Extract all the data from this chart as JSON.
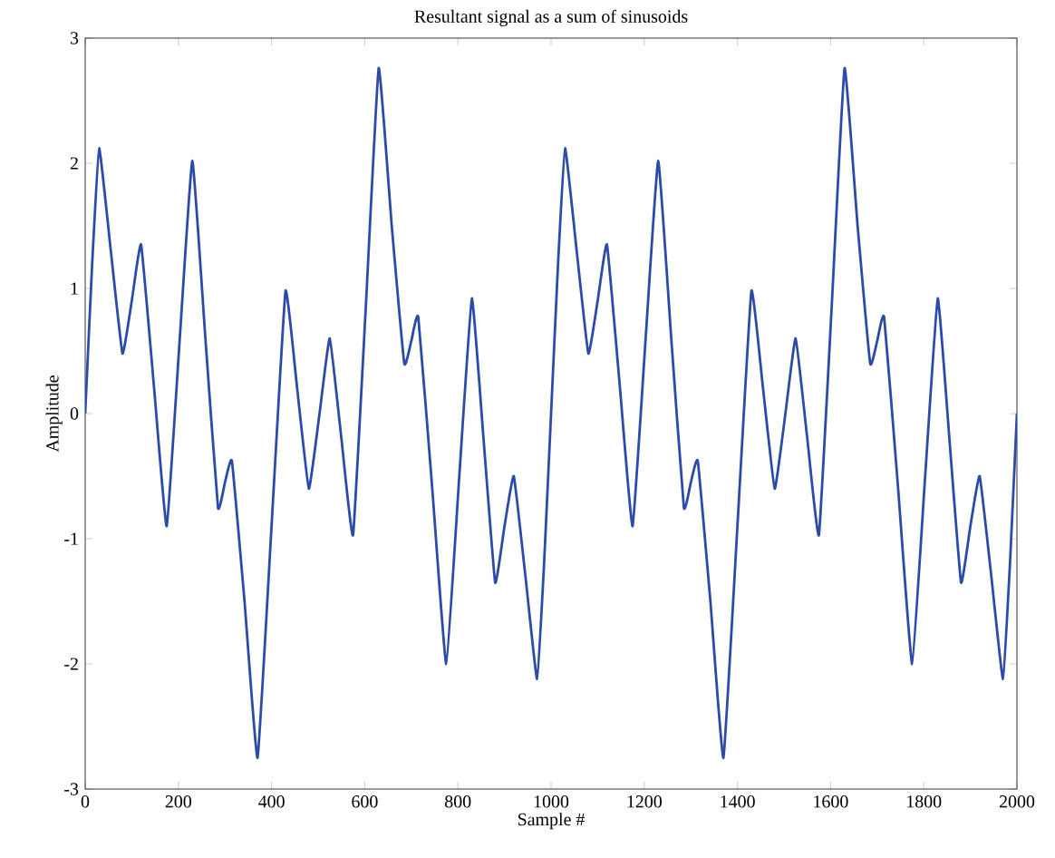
{
  "chart_data": {
    "type": "line",
    "title": "Resultant signal as a sum of sinusoids",
    "xlabel": "Sample #",
    "ylabel": "Amplitude",
    "x": [
      0,
      15,
      30,
      55,
      80,
      100,
      120,
      148,
      175,
      203,
      230,
      258,
      285,
      300,
      315,
      342,
      370,
      400,
      430,
      455,
      480,
      503,
      525,
      550,
      575,
      603,
      630,
      658,
      685,
      700,
      715,
      745,
      775,
      803,
      830,
      855,
      880,
      900,
      920,
      945,
      970,
      985,
      1000,
      1015,
      1030,
      1055,
      1080,
      1100,
      1120,
      1148,
      1175,
      1203,
      1230,
      1258,
      1285,
      1300,
      1315,
      1342,
      1370,
      1400,
      1430,
      1455,
      1480,
      1503,
      1525,
      1550,
      1575,
      1603,
      1630,
      1658,
      1685,
      1700,
      1715,
      1745,
      1775,
      1803,
      1830,
      1855,
      1880,
      1900,
      1920,
      1945,
      1970,
      1985,
      2000
    ],
    "series": [
      {
        "color": "#2b4ba8",
        "values": [
          0,
          1.2,
          2.12,
          1.3,
          0.48,
          0.9,
          1.35,
          0.2,
          -0.9,
          0.6,
          2.02,
          0.6,
          -0.75,
          -0.55,
          -0.38,
          -1.5,
          -2.75,
          -0.9,
          0.98,
          0.2,
          -0.6,
          0.0,
          0.6,
          -0.2,
          -0.97,
          0.9,
          2.76,
          1.5,
          0.4,
          0.58,
          0.77,
          -0.6,
          -2.0,
          -0.5,
          0.92,
          -0.2,
          -1.35,
          -0.9,
          -0.5,
          -1.3,
          -2.12,
          -1.2,
          0,
          1.2,
          2.12,
          1.3,
          0.48,
          0.9,
          1.35,
          0.2,
          -0.9,
          0.6,
          2.02,
          0.6,
          -0.75,
          -0.55,
          -0.38,
          -1.5,
          -2.75,
          -0.9,
          0.98,
          0.2,
          -0.6,
          0.0,
          0.6,
          -0.2,
          -0.97,
          0.9,
          2.76,
          1.5,
          0.4,
          0.58,
          0.77,
          -0.6,
          -2.0,
          -0.5,
          0.92,
          -0.2,
          -1.35,
          -0.9,
          -0.5,
          -1.3,
          -2.12,
          -1.2,
          0
        ]
      }
    ],
    "xlim": [
      0,
      2000
    ],
    "ylim": [
      -3,
      3
    ],
    "xticks": [
      0,
      200,
      400,
      600,
      800,
      1000,
      1200,
      1400,
      1600,
      1800,
      2000
    ],
    "yticks": [
      -3,
      -2,
      -1,
      0,
      1,
      2,
      3
    ]
  }
}
